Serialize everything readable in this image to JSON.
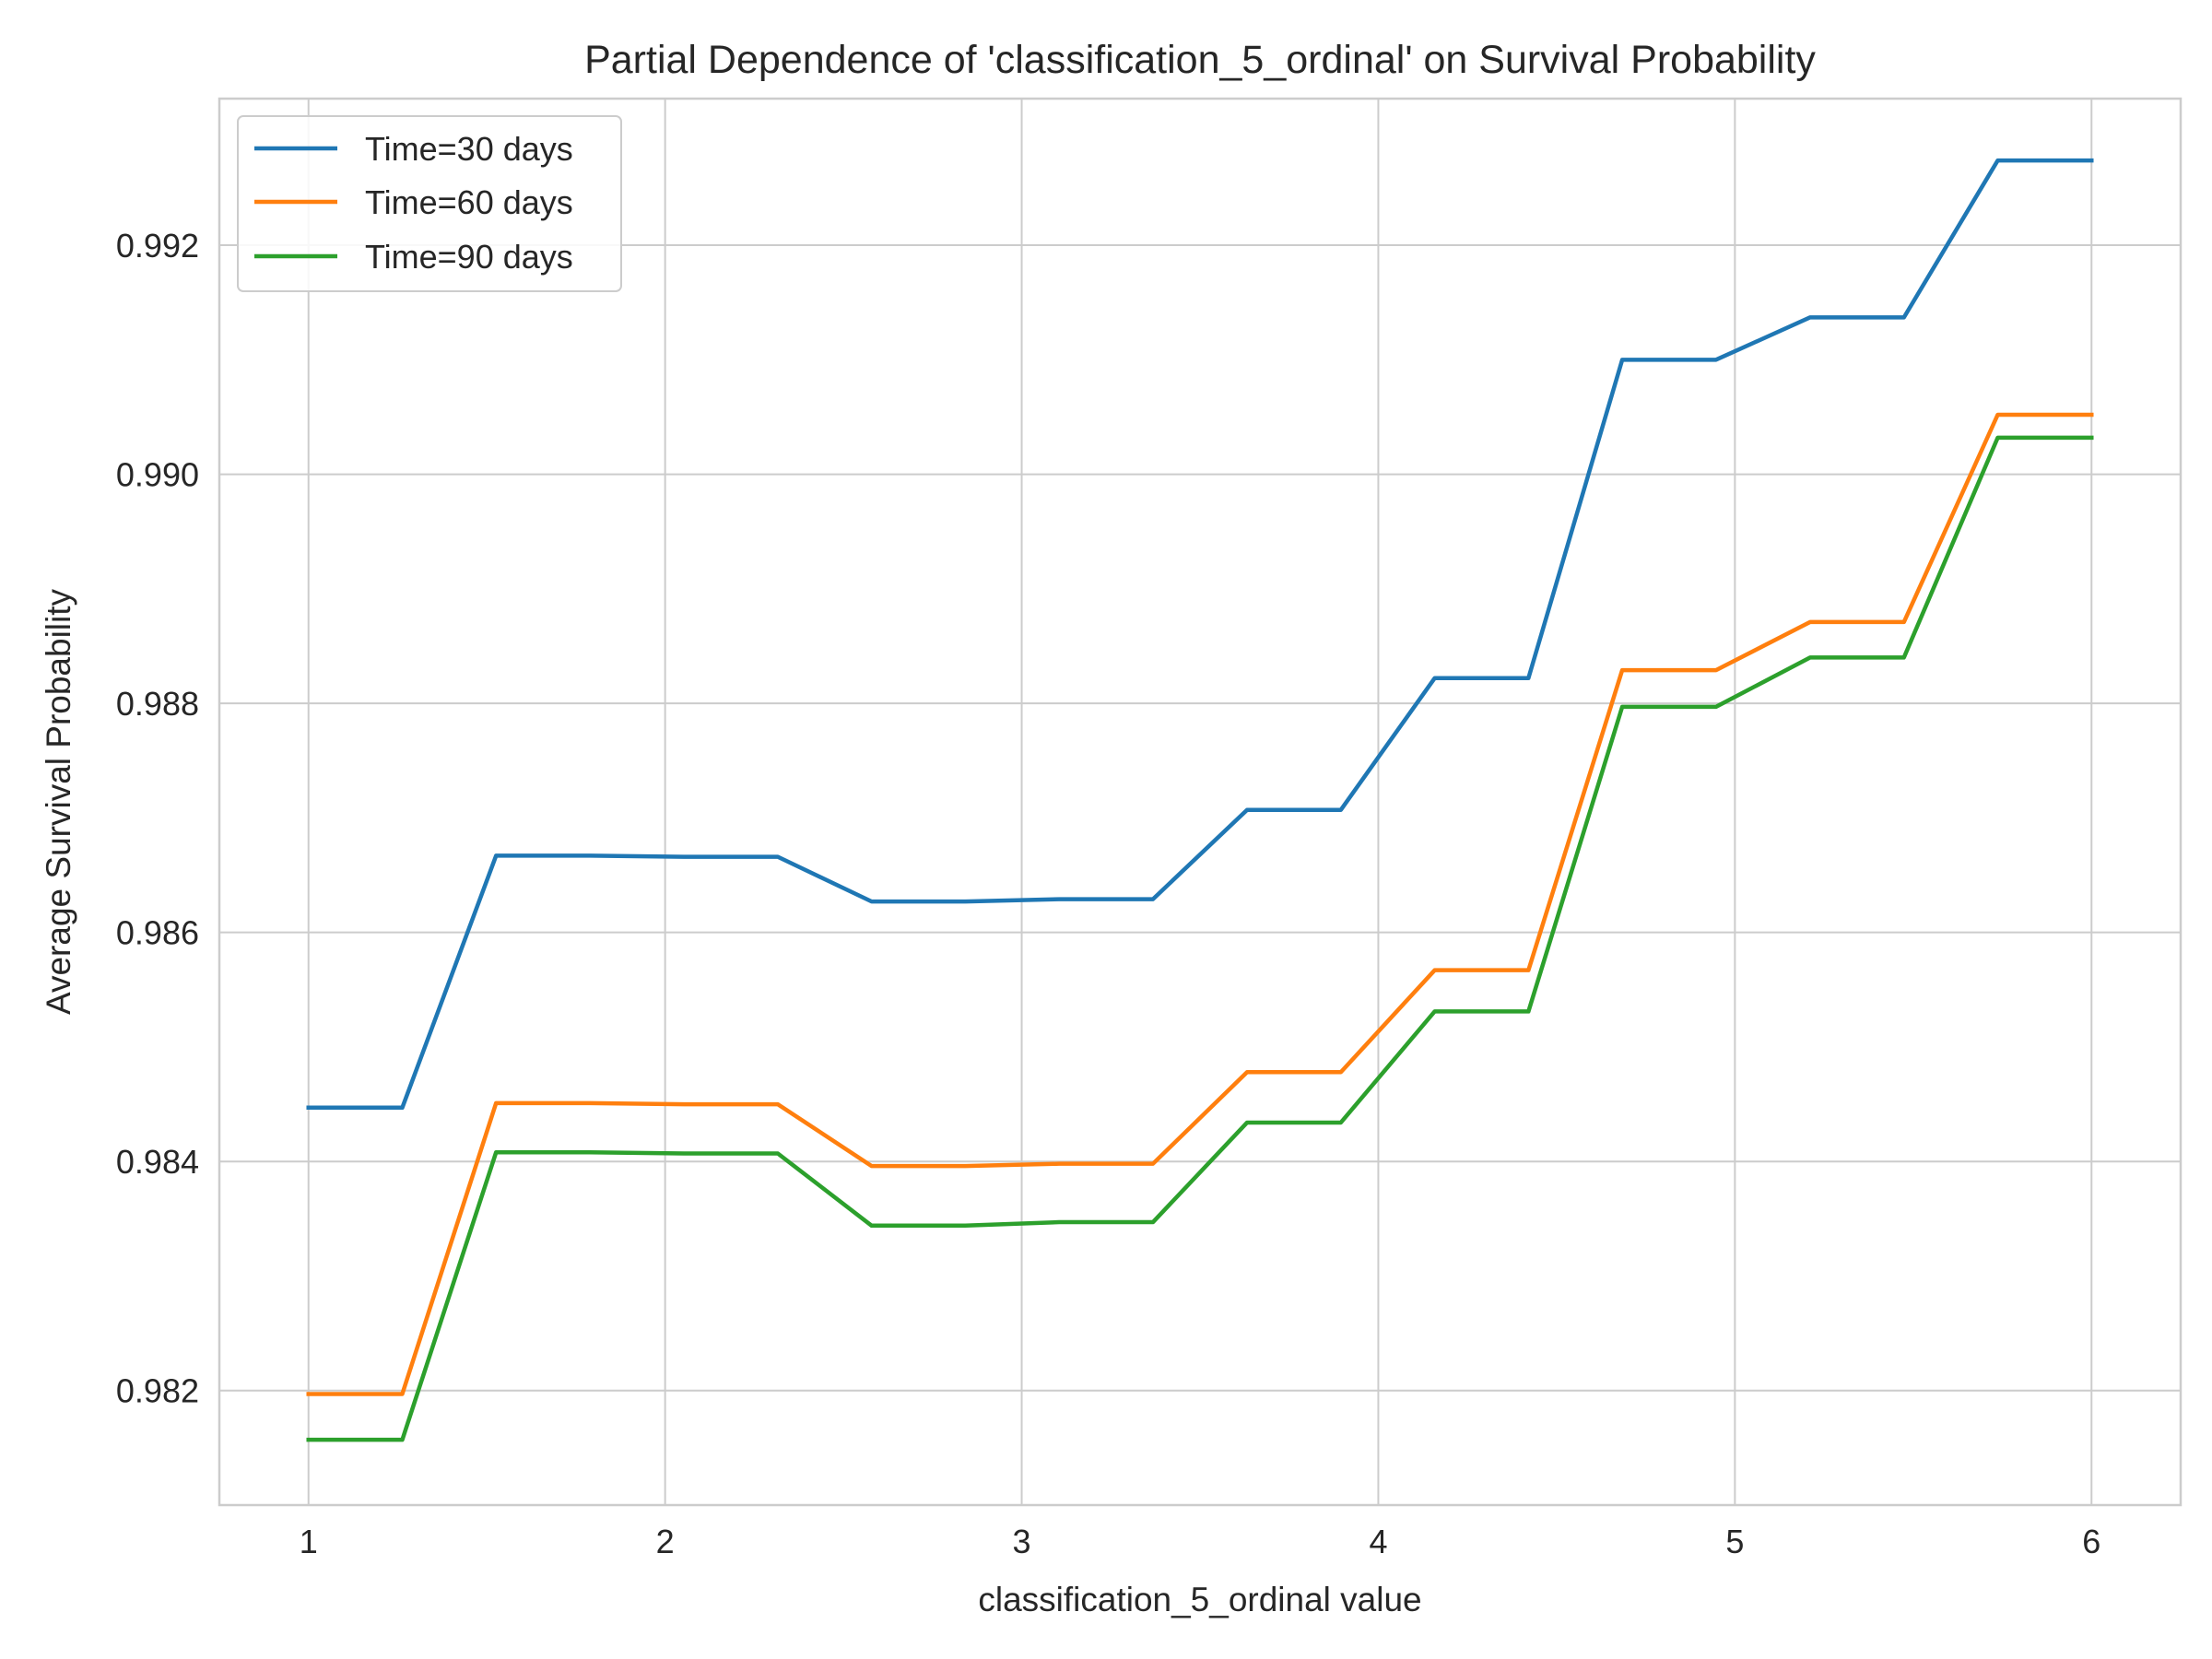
{
  "chart_data": {
    "type": "line",
    "title": "Partial Dependence of 'classification_5_ordinal' on Survival Probability",
    "xlabel": "classification_5_ordinal value",
    "ylabel": "Average Survival Probability",
    "xlim": [
      0.75,
      6.25
    ],
    "ylim": [
      0.981,
      0.99328
    ],
    "xticks": [
      1,
      2,
      3,
      4,
      5,
      6
    ],
    "xtick_labels": [
      "1",
      "2",
      "3",
      "4",
      "5",
      "6"
    ],
    "yticks": [
      0.982,
      0.984,
      0.986,
      0.988,
      0.99,
      0.992
    ],
    "ytick_labels": [
      "0.982",
      "0.984",
      "0.986",
      "0.988",
      "0.990",
      "0.992"
    ],
    "grid": true,
    "legend_position": "top-left",
    "x": [
      1.0,
      1.263,
      1.526,
      1.789,
      2.053,
      2.316,
      2.579,
      2.842,
      3.105,
      3.368,
      3.632,
      3.895,
      4.158,
      4.421,
      4.684,
      4.947,
      5.211,
      5.474,
      5.737,
      6.0
    ],
    "series": [
      {
        "name": "Time=30 days",
        "color": "#1f77b4",
        "values": [
          0.98447,
          0.98447,
          0.98667,
          0.98667,
          0.98666,
          0.98666,
          0.98627,
          0.98627,
          0.98629,
          0.98629,
          0.98707,
          0.98707,
          0.98822,
          0.98822,
          0.991,
          0.991,
          0.99137,
          0.99137,
          0.99274,
          0.99274
        ]
      },
      {
        "name": "Time=60 days",
        "color": "#ff7f0e",
        "values": [
          0.98197,
          0.98197,
          0.98451,
          0.98451,
          0.9845,
          0.9845,
          0.98396,
          0.98396,
          0.98398,
          0.98398,
          0.98478,
          0.98478,
          0.98567,
          0.98567,
          0.98829,
          0.98829,
          0.98871,
          0.98871,
          0.99052,
          0.99052
        ]
      },
      {
        "name": "Time=90 days",
        "color": "#2ca02c",
        "values": [
          0.98157,
          0.98157,
          0.98408,
          0.98408,
          0.98407,
          0.98407,
          0.98344,
          0.98344,
          0.98347,
          0.98347,
          0.98434,
          0.98434,
          0.98531,
          0.98531,
          0.98797,
          0.98797,
          0.9884,
          0.9884,
          0.99032,
          0.99032
        ]
      }
    ]
  }
}
